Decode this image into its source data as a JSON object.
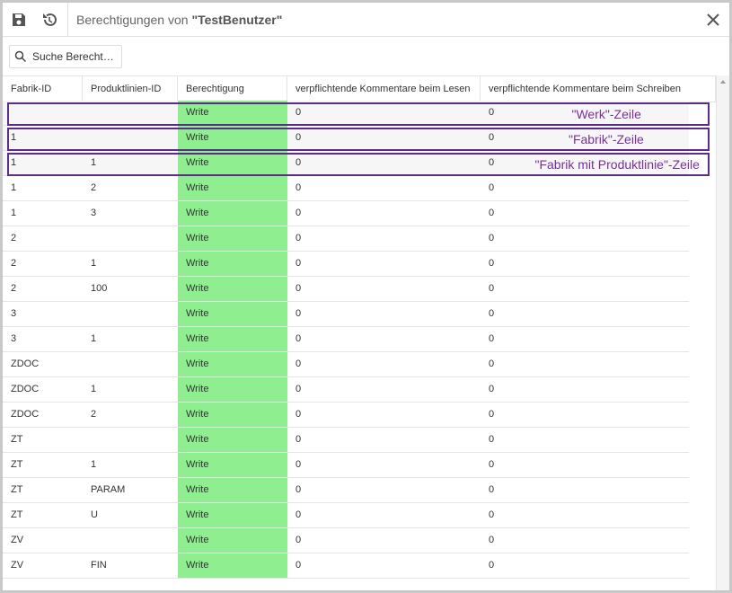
{
  "header": {
    "title": "Berechtigungen von ",
    "user": "\"TestBenutzer\""
  },
  "search": {
    "placeholder": "Suche Berecht…"
  },
  "table": {
    "columns": [
      "Fabrik-ID",
      "Produktlinien-ID",
      "Berechtigung",
      "verpflichtende Kommentare beim Lesen",
      "verpflichtende Kommentare beim Schreiben"
    ],
    "rows": [
      [
        null,
        null,
        "Write",
        "0",
        "0"
      ],
      [
        "1",
        null,
        "Write",
        "0",
        "0"
      ],
      [
        "1",
        "1",
        "Write",
        "0",
        "0"
      ],
      [
        "1",
        "2",
        "Write",
        "0",
        "0"
      ],
      [
        "1",
        "3",
        "Write",
        "0",
        "0"
      ],
      [
        "2",
        null,
        "Write",
        "0",
        "0"
      ],
      [
        "2",
        "1",
        "Write",
        "0",
        "0"
      ],
      [
        "2",
        "100",
        "Write",
        "0",
        "0"
      ],
      [
        "3",
        null,
        "Write",
        "0",
        "0"
      ],
      [
        "3",
        "1",
        "Write",
        "0",
        "0"
      ],
      [
        "ZDOC",
        null,
        "Write",
        "0",
        "0"
      ],
      [
        "ZDOC",
        "1",
        "Write",
        "0",
        "0"
      ],
      [
        "ZDOC",
        "2",
        "Write",
        "0",
        "0"
      ],
      [
        "ZT",
        null,
        "Write",
        "0",
        "0"
      ],
      [
        "ZT",
        "1",
        "Write",
        "0",
        "0"
      ],
      [
        "ZT",
        "PARAM",
        "Write",
        "0",
        "0"
      ],
      [
        "ZT",
        "U",
        "Write",
        "0",
        "0"
      ],
      [
        "ZV",
        null,
        "Write",
        "0",
        "0"
      ],
      [
        "ZV",
        "FIN",
        "Write",
        "0",
        "0"
      ]
    ]
  },
  "annotations": [
    {
      "row": 0,
      "label": "\"Werk\"-Zeile"
    },
    {
      "row": 1,
      "label": "\"Fabrik\"-Zeile"
    },
    {
      "row": 2,
      "label": "\"Fabrik mit Produktlinie\"-Zeile"
    }
  ]
}
